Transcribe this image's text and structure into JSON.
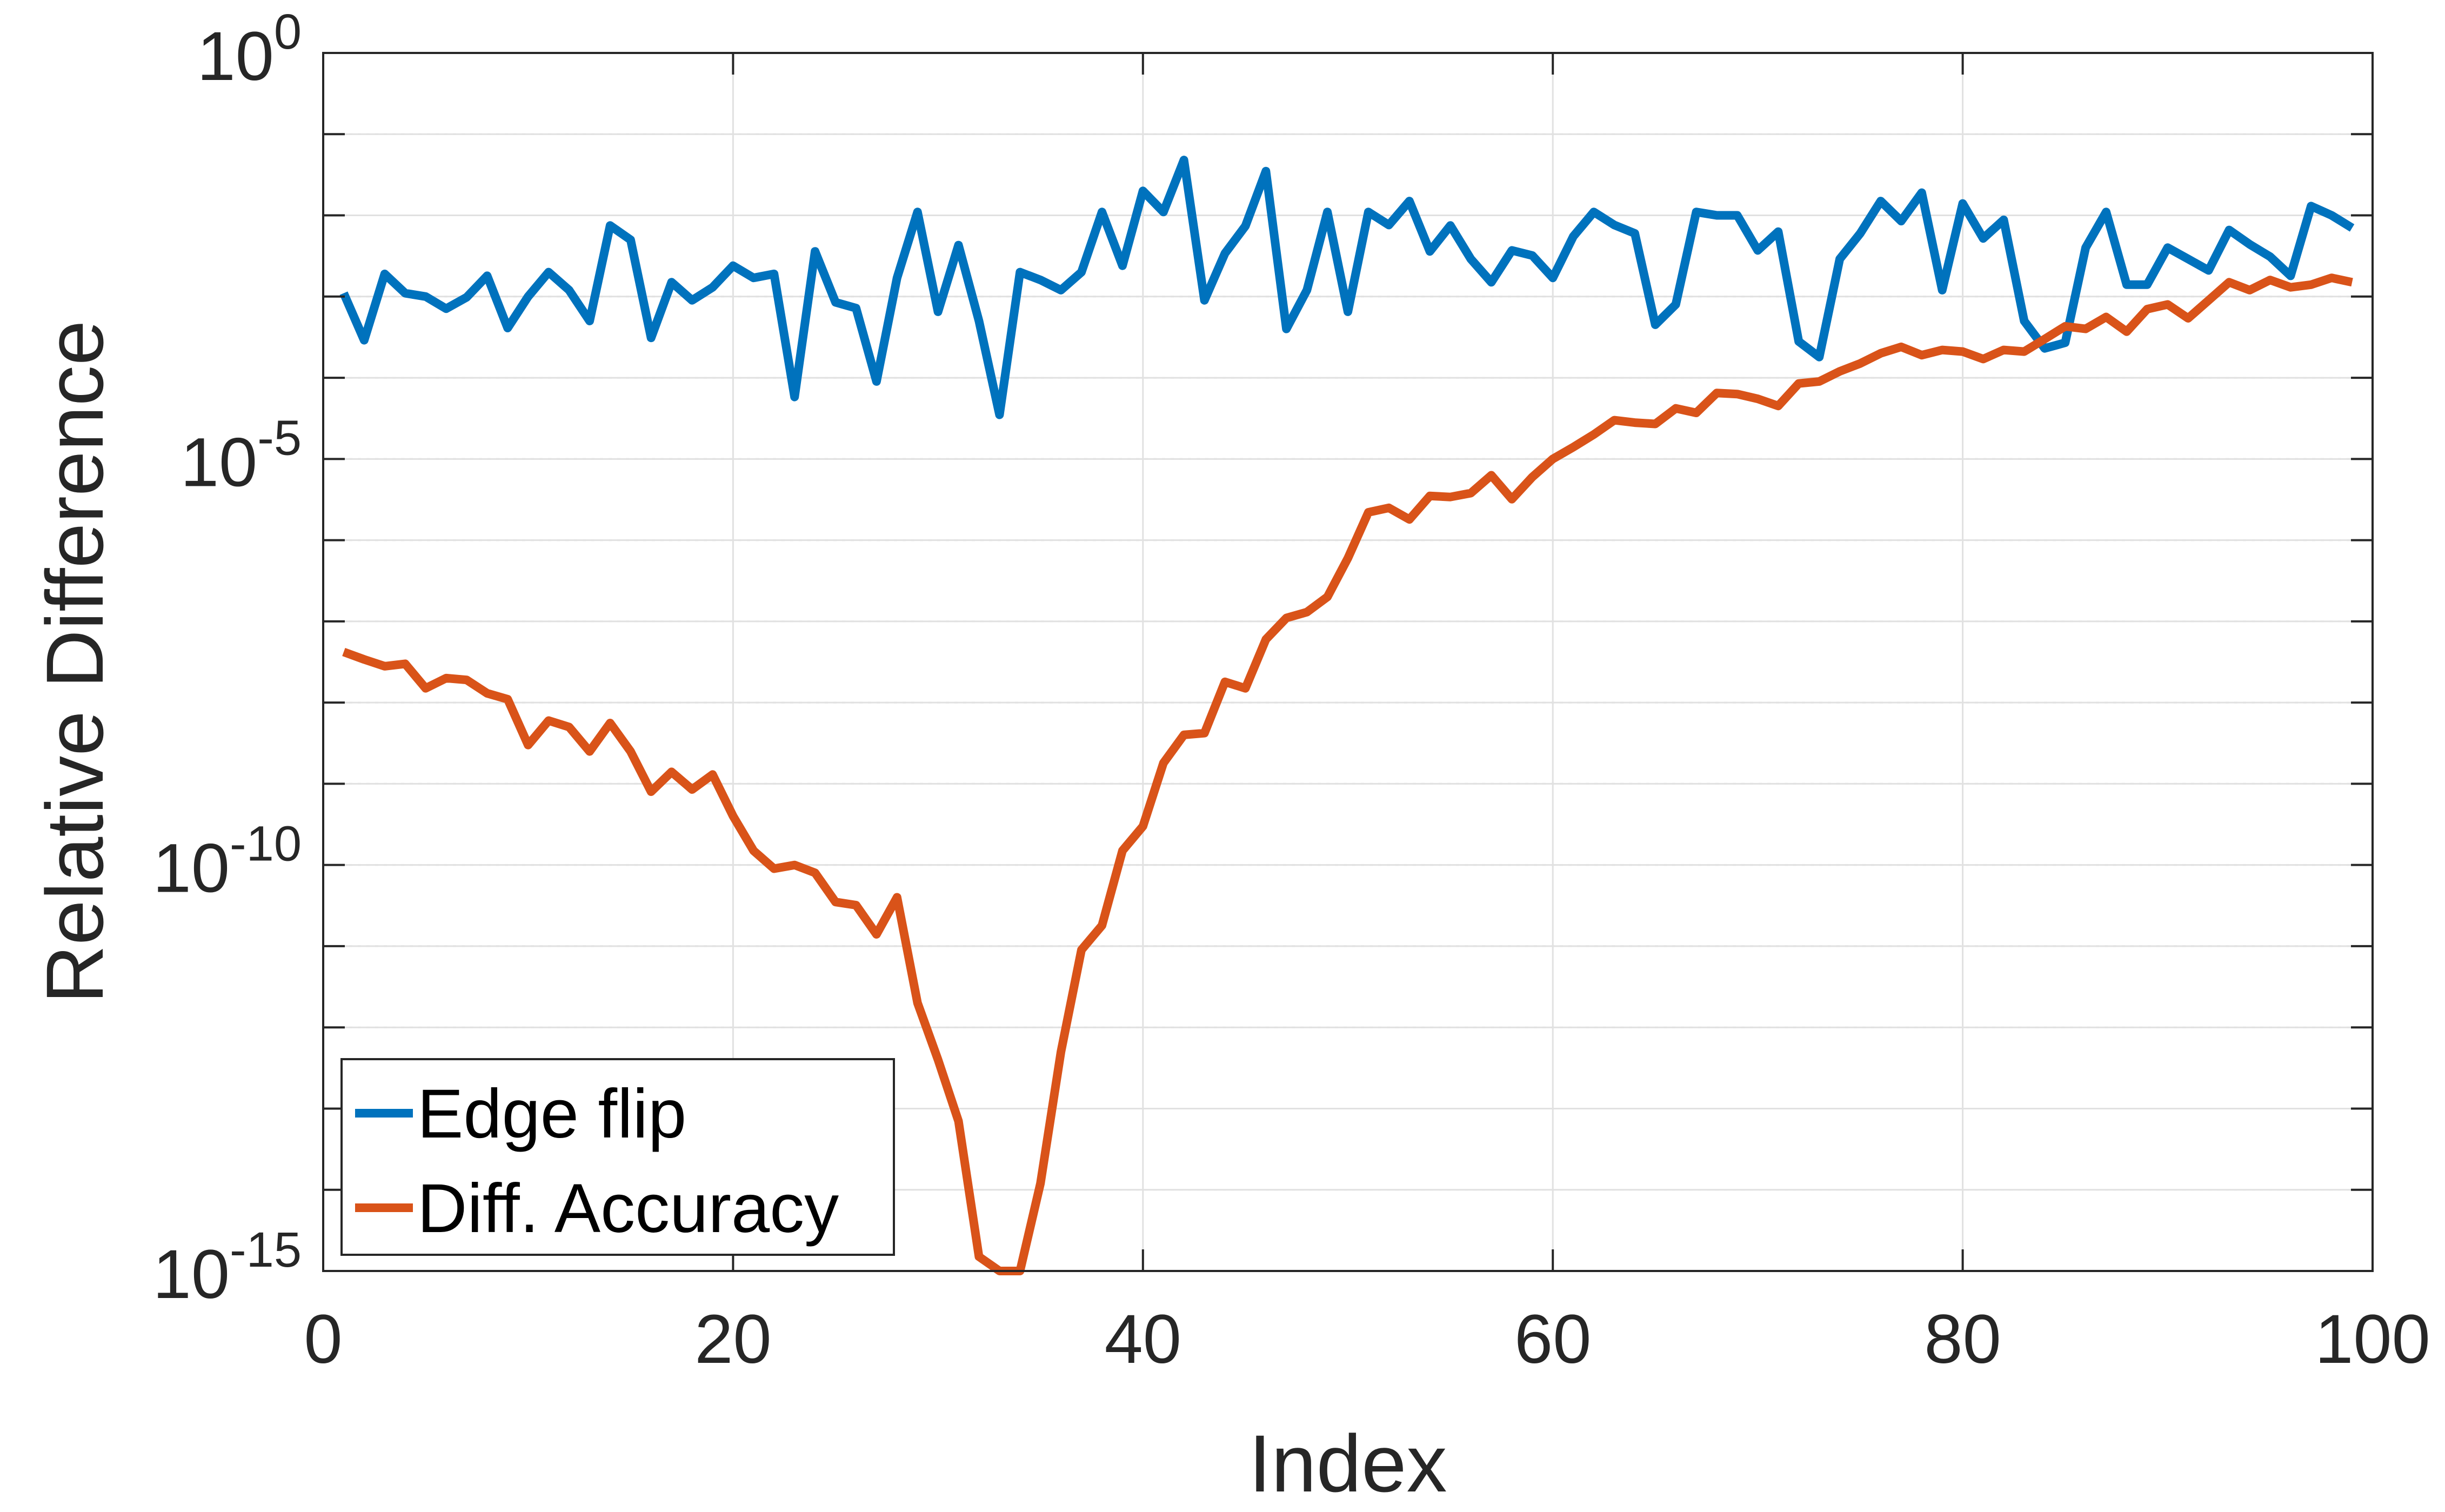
{
  "chart_data": {
    "type": "line",
    "xlabel": "Index",
    "ylabel": "Relative Difference",
    "xlim": [
      0,
      100
    ],
    "ylim": [
      1e-15,
      1
    ],
    "y_scale": "log",
    "x_ticks": [
      "0",
      "20",
      "40",
      "60",
      "80",
      "100"
    ],
    "y_ticks": [
      {
        "base": "10",
        "exp": "-15"
      },
      {
        "base": "10",
        "exp": "-10"
      },
      {
        "base": "10",
        "exp": "-5"
      },
      {
        "base": "10",
        "exp": "0"
      }
    ],
    "grid": true,
    "legend_position": "bottom-left",
    "colors": {
      "edge_flip": "#0072BD",
      "diff_accuracy": "#D95319"
    },
    "x": [
      1,
      2,
      3,
      4,
      5,
      6,
      7,
      8,
      9,
      10,
      11,
      12,
      13,
      14,
      15,
      16,
      17,
      18,
      19,
      20,
      21,
      22,
      23,
      24,
      25,
      26,
      27,
      28,
      29,
      30,
      31,
      32,
      33,
      34,
      35,
      36,
      37,
      38,
      39,
      40,
      41,
      42,
      43,
      44,
      45,
      46,
      47,
      48,
      49,
      50,
      51,
      52,
      53,
      54,
      55,
      56,
      57,
      58,
      59,
      60,
      61,
      62,
      63,
      64,
      65,
      66,
      67,
      68,
      69,
      70,
      71,
      72,
      73,
      74,
      75,
      76,
      77,
      78,
      79,
      80,
      81,
      82,
      83,
      84,
      85,
      86,
      87,
      88,
      89,
      90,
      91,
      92,
      93,
      94,
      95,
      96,
      97,
      98,
      99
    ],
    "series": [
      {
        "name": "Edge flip",
        "values": [
          0.0011,
          0.00029,
          0.0019,
          0.0011,
          0.001,
          0.00071,
          0.00098,
          0.0018,
          0.00041,
          0.001,
          0.002,
          0.0012,
          0.0005,
          0.0075,
          0.005,
          0.00031,
          0.0015,
          0.0009,
          0.0013,
          0.0024,
          0.0017,
          0.0019,
          5.8e-05,
          0.0036,
          0.00085,
          0.00072,
          9e-05,
          0.0017,
          0.011,
          0.00065,
          0.0043,
          0.0005,
          3.5e-05,
          0.002,
          0.0016,
          0.0012,
          0.002,
          0.011,
          0.0024,
          0.02,
          0.011,
          0.048,
          0.0009,
          0.0034,
          0.0074,
          0.035,
          0.0004,
          0.0012,
          0.011,
          0.00065,
          0.011,
          0.0076,
          0.015,
          0.0036,
          0.0075,
          0.0029,
          0.0015,
          0.0037,
          0.0032,
          0.0017,
          0.0055,
          0.011,
          0.0076,
          0.006,
          0.00045,
          0.0008,
          0.011,
          0.01,
          0.01,
          0.0037,
          0.0063,
          0.00028,
          0.00018,
          0.0029,
          0.006,
          0.015,
          0.0085,
          0.019,
          0.0012,
          0.014,
          0.0052,
          0.0088,
          0.0005,
          0.00023,
          0.00027,
          0.004,
          0.011,
          0.0014,
          0.0014,
          0.004,
          0.0029,
          0.0021,
          0.0066,
          0.0044,
          0.0031,
          0.0018,
          0.013,
          0.01,
          0.007
        ]
      },
      {
        "name": "Diff. Accuracy",
        "values": [
          4.2e-08,
          3.4e-08,
          2.8e-08,
          3e-08,
          1.5e-08,
          2e-08,
          1.9e-08,
          1.3e-08,
          1.1e-08,
          3e-09,
          6e-09,
          5e-09,
          2.5e-09,
          5.6e-09,
          2.5e-09,
          8e-10,
          1.4e-09,
          8.5e-10,
          1.3e-09,
          4e-10,
          1.5e-10,
          9e-11,
          1e-10,
          8e-11,
          3.5e-11,
          3.2e-11,
          1.4e-11,
          4e-11,
          2e-12,
          4e-13,
          7e-14,
          1.5e-15,
          3e-17,
          1e-15,
          1.2e-14,
          5e-13,
          9e-12,
          1.8e-11,
          1.5e-10,
          3e-10,
          1.8e-09,
          4e-09,
          4.2e-09,
          1.8e-08,
          1.5e-08,
          6e-08,
          1.1e-07,
          1.3e-07,
          2e-07,
          6e-07,
          2.2e-06,
          2.5e-06,
          1.8e-06,
          3.5e-06,
          3.4e-06,
          3.8e-06,
          6.3e-06,
          3.2e-06,
          6e-06,
          1e-05,
          1.4e-05,
          2e-05,
          3e-05,
          2.8e-05,
          2.7e-05,
          4.2e-05,
          3.7e-05,
          6.5e-05,
          6.3e-05,
          5.5e-05,
          4.5e-05,
          8.5e-05,
          9e-05,
          0.00012,
          0.00015,
          0.0002,
          0.00024,
          0.00019,
          0.00022,
          0.00021,
          0.00017,
          0.00022,
          0.00021,
          0.0003,
          0.00043,
          0.0004,
          0.00056,
          0.00037,
          0.0007,
          0.0008,
          0.00054,
          0.0009,
          0.0015,
          0.0012,
          0.0016,
          0.0013,
          0.0014,
          0.0017,
          0.0015
        ]
      }
    ]
  }
}
